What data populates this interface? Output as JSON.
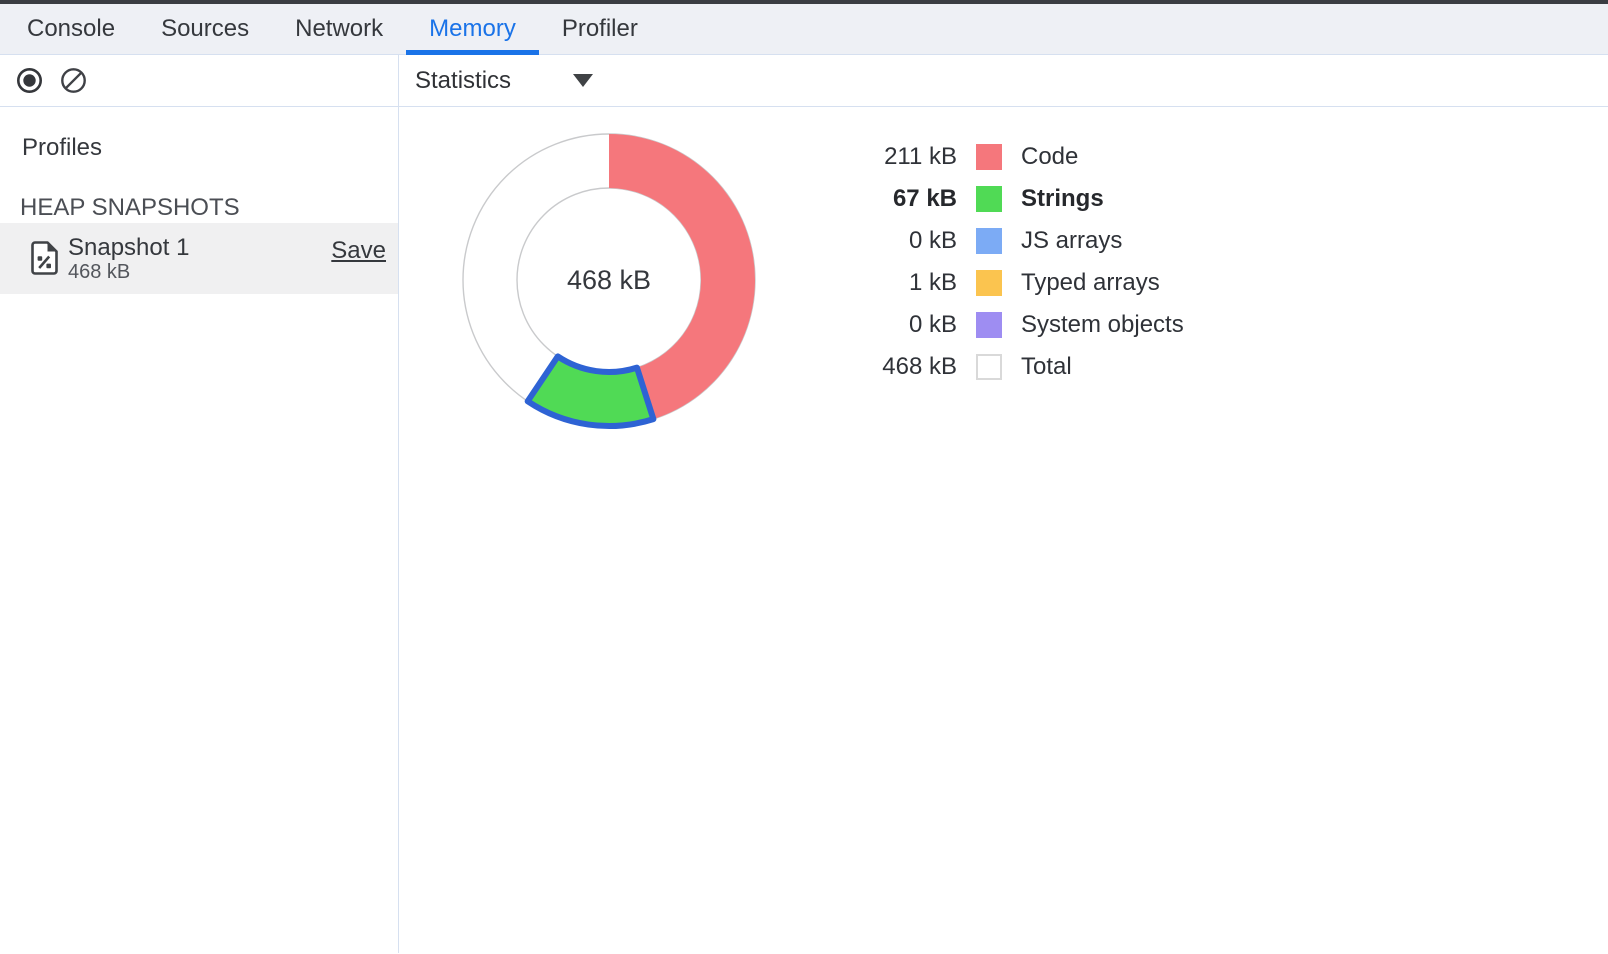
{
  "tabs": {
    "items": [
      {
        "label": "Console",
        "active": false
      },
      {
        "label": "Sources",
        "active": false
      },
      {
        "label": "Network",
        "active": false
      },
      {
        "label": "Memory",
        "active": true
      },
      {
        "label": "Profiler",
        "active": false
      }
    ],
    "active_color": "#1a73e8"
  },
  "toolbar": {
    "record_icon": "record-heap-snapshot",
    "clear_icon": "clear-all-profiles",
    "icon_color": "#35373b",
    "mode_select": {
      "value": "Statistics"
    }
  },
  "sidebar": {
    "profiles_title": "Profiles",
    "section_title": "HEAP SNAPSHOTS",
    "snapshot": {
      "title": "Snapshot 1",
      "size": "468 kB",
      "save_label": "Save",
      "selected": true
    }
  },
  "chart_data": {
    "type": "pie",
    "title": "Heap snapshot statistics",
    "center_label": "468 kB",
    "unit": "kB",
    "total_kb": 468,
    "legend_position": "right",
    "selection_color": "#2e63d4",
    "ring_outline_color": "#c9cacc",
    "slices": [
      {
        "name": "Code",
        "value_kb": 211,
        "label": "211 kB",
        "color": "#f5777c",
        "selected": false,
        "is_total": false
      },
      {
        "name": "Strings",
        "value_kb": 67,
        "label": "67 kB",
        "color": "#50da55",
        "selected": true,
        "is_total": false
      },
      {
        "name": "JS arrays",
        "value_kb": 0,
        "label": "0 kB",
        "color": "#7cabf5",
        "selected": false,
        "is_total": false
      },
      {
        "name": "Typed arrays",
        "value_kb": 1,
        "label": "1 kB",
        "color": "#fbc44f",
        "selected": false,
        "is_total": false
      },
      {
        "name": "System objects",
        "value_kb": 0,
        "label": "0 kB",
        "color": "#9e8df2",
        "selected": false,
        "is_total": false
      },
      {
        "name": "Total",
        "value_kb": 468,
        "label": "468 kB",
        "color": "#ffffff",
        "selected": false,
        "is_total": true,
        "swatch_border": "#d9d9d9"
      }
    ]
  }
}
